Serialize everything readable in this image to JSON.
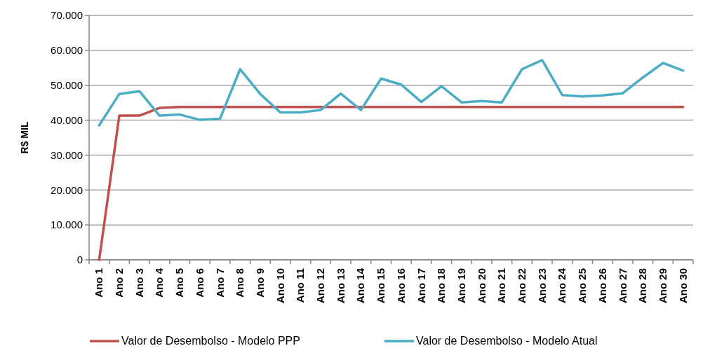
{
  "chart_data": {
    "type": "line",
    "ylabel": "R$ MIL",
    "categories": [
      "Ano 1",
      "Ano 2",
      "Ano 3",
      "Ano 4",
      "Ano 5",
      "Ano 6",
      "Ano 7",
      "Ano 8",
      "Ano 9",
      "Ano 10",
      "Ano 11",
      "Ano 12",
      "Ano 13",
      "Ano 14",
      "Ano 15",
      "Ano 16",
      "Ano 17",
      "Ano 18",
      "Ano 19",
      "Ano 20",
      "Ano 21",
      "Ano 22",
      "Ano 23",
      "Ano 24",
      "Ano 25",
      "Ano 26",
      "Ano 27",
      "Ano 28",
      "Ano 29",
      "Ano 30"
    ],
    "series": [
      {
        "name": "Valor de Desembolso - Modelo PPP",
        "color": "#c0504d",
        "values": [
          0,
          41300,
          41300,
          43500,
          43800,
          43800,
          43800,
          43800,
          43800,
          43800,
          43800,
          43800,
          43800,
          43800,
          43800,
          43800,
          43800,
          43800,
          43800,
          43800,
          43800,
          43800,
          43800,
          43800,
          43800,
          43800,
          43800,
          43800,
          43800,
          43800
        ]
      },
      {
        "name": "Valor de Desembolso - Modelo Atual",
        "color": "#4bacc6",
        "values": [
          38500,
          47500,
          48300,
          41300,
          41600,
          40100,
          40400,
          54600,
          47500,
          42200,
          42200,
          42900,
          47600,
          42900,
          51900,
          50200,
          45200,
          49700,
          45100,
          45500,
          45100,
          54600,
          57200,
          47200,
          46800,
          47100,
          47700,
          52200,
          56400,
          54200
        ]
      }
    ],
    "ylim": [
      0,
      70000
    ],
    "yticks": [
      {
        "value": 0,
        "label": "0"
      },
      {
        "value": 10000,
        "label": "10.000"
      },
      {
        "value": 20000,
        "label": "20.000"
      },
      {
        "value": 30000,
        "label": "30.000"
      },
      {
        "value": 40000,
        "label": "40.000"
      },
      {
        "value": 50000,
        "label": "50.000"
      },
      {
        "value": 60000,
        "label": "60.000"
      },
      {
        "value": 70000,
        "label": "70.000"
      }
    ],
    "grid": "y",
    "legend": "bottom",
    "marker": "none",
    "line_style": "solid"
  }
}
